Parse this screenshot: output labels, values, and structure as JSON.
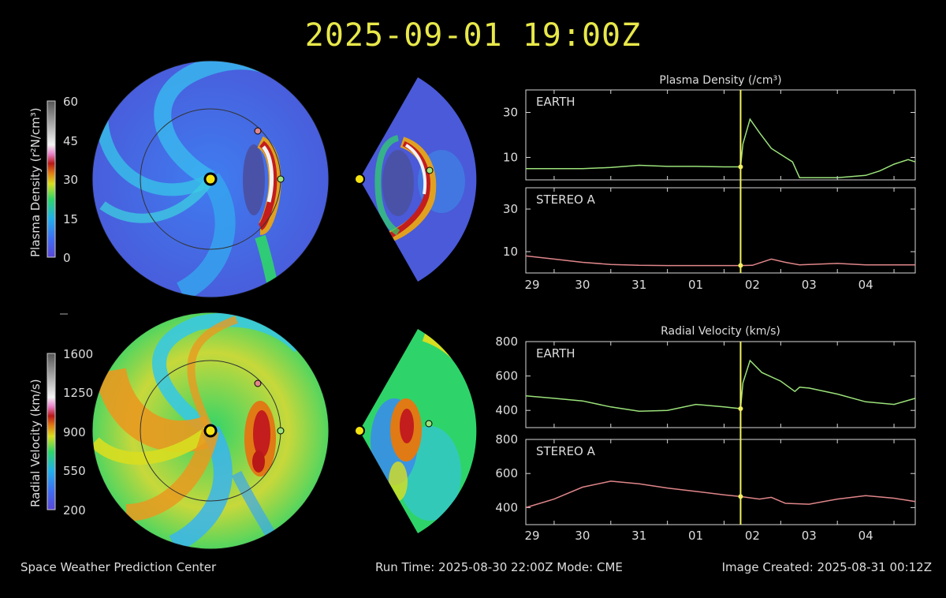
{
  "title": "2025-09-01 19:00Z",
  "footer": {
    "left": "Space Weather Prediction Center",
    "center": "Run Time: 2025-08-30 22:00Z  Mode: CME",
    "right": "Image Created: 2025-08-31 00:12Z"
  },
  "colorbars": {
    "density": {
      "label": "Plasma Density (r²N/cm³)",
      "ticks": [
        "60",
        "45",
        "30",
        "15",
        "0"
      ]
    },
    "velocity": {
      "label": "Radial Velocity (km/s)",
      "ticks": [
        "1600",
        "1250",
        "900",
        "550",
        "200"
      ]
    }
  },
  "colors": {
    "title": "#e8e84a",
    "earth_series": "#9be27a",
    "stereo_series": "#e0868a",
    "marker_line": "#f0f060",
    "axis": "#d8d8d8"
  },
  "chart_data": [
    {
      "type": "line",
      "title": "Plasma Density (/cm³)",
      "xlabel": "",
      "ylabel": "",
      "x_ticks": [
        "29",
        "30",
        "31",
        "01",
        "02",
        "03",
        "04"
      ],
      "xlim": [
        "2025-08-29 00:00",
        "2025-09-04 21:00"
      ],
      "current_time": "2025-09-01 19:00",
      "panels": [
        {
          "name": "EARTH",
          "ylim": [
            0,
            40
          ],
          "y_ticks": [
            "30",
            "10"
          ],
          "series": [
            {
              "name": "EARTH",
              "x": [
                "2025-08-29 00:00",
                "2025-08-29 12:00",
                "2025-08-30 00:00",
                "2025-08-30 12:00",
                "2025-08-31 00:00",
                "2025-08-31 12:00",
                "2025-09-01 00:00",
                "2025-09-01 12:00",
                "2025-09-01 19:00",
                "2025-09-01 20:00",
                "2025-09-01 23:00",
                "2025-09-02 03:00",
                "2025-09-02 08:00",
                "2025-09-02 14:00",
                "2025-09-02 17:00",
                "2025-09-02 20:00",
                "2025-09-03 00:00",
                "2025-09-03 12:00",
                "2025-09-04 00:00",
                "2025-09-04 06:00",
                "2025-09-04 12:00",
                "2025-09-04 18:00",
                "2025-09-04 21:00"
              ],
              "y": [
                5,
                5,
                5,
                5.5,
                6.5,
                6,
                6,
                5.8,
                5.8,
                16,
                27,
                21,
                14,
                10,
                8,
                1,
                1,
                1,
                2,
                4,
                7,
                9,
                8
              ]
            }
          ]
        },
        {
          "name": "STEREO A",
          "ylim": [
            0,
            40
          ],
          "y_ticks": [
            "30",
            "10"
          ],
          "series": [
            {
              "name": "STEREO A",
              "x": [
                "2025-08-29 00:00",
                "2025-08-29 12:00",
                "2025-08-30 00:00",
                "2025-08-30 12:00",
                "2025-08-31 00:00",
                "2025-08-31 12:00",
                "2025-09-01 00:00",
                "2025-09-01 19:00",
                "2025-09-02 00:00",
                "2025-09-02 08:00",
                "2025-09-02 14:00",
                "2025-09-02 20:00",
                "2025-09-03 00:00",
                "2025-09-03 12:00",
                "2025-09-04 00:00",
                "2025-09-04 21:00"
              ],
              "y": [
                8,
                6.5,
                5,
                4,
                3.6,
                3.5,
                3.5,
                3.5,
                3.6,
                6.5,
                5,
                3.8,
                4,
                4.5,
                3.8,
                3.8
              ]
            }
          ]
        }
      ]
    },
    {
      "type": "line",
      "title": "Radial Velocity (km/s)",
      "xlabel": "",
      "ylabel": "",
      "x_ticks": [
        "29",
        "30",
        "31",
        "01",
        "02",
        "03",
        "04"
      ],
      "xlim": [
        "2025-08-29 00:00",
        "2025-09-04 21:00"
      ],
      "current_time": "2025-09-01 19:00",
      "panels": [
        {
          "name": "EARTH",
          "ylim": [
            300,
            800
          ],
          "y_ticks": [
            "800",
            "600",
            "400"
          ],
          "series": [
            {
              "name": "EARTH",
              "x": [
                "2025-08-29 00:00",
                "2025-08-29 12:00",
                "2025-08-30 00:00",
                "2025-08-30 12:00",
                "2025-08-31 00:00",
                "2025-08-31 12:00",
                "2025-09-01 00:00",
                "2025-09-01 12:00",
                "2025-09-01 19:00",
                "2025-09-01 20:00",
                "2025-09-01 23:00",
                "2025-09-02 04:00",
                "2025-09-02 12:00",
                "2025-09-02 18:00",
                "2025-09-02 20:00",
                "2025-09-03 00:00",
                "2025-09-03 12:00",
                "2025-09-04 00:00",
                "2025-09-04 12:00",
                "2025-09-04 21:00"
              ],
              "y": [
                485,
                470,
                455,
                420,
                395,
                400,
                435,
                420,
                410,
                560,
                690,
                620,
                570,
                510,
                535,
                530,
                495,
                450,
                435,
                470
              ]
            }
          ]
        },
        {
          "name": "STEREO A",
          "ylim": [
            300,
            800
          ],
          "y_ticks": [
            "800",
            "600",
            "400"
          ],
          "series": [
            {
              "name": "STEREO A",
              "x": [
                "2025-08-29 00:00",
                "2025-08-29 12:00",
                "2025-08-30 00:00",
                "2025-08-30 12:00",
                "2025-08-31 00:00",
                "2025-08-31 12:00",
                "2025-09-01 00:00",
                "2025-09-01 12:00",
                "2025-09-01 19:00",
                "2025-09-02 03:00",
                "2025-09-02 08:00",
                "2025-09-02 14:00",
                "2025-09-03 00:00",
                "2025-09-03 12:00",
                "2025-09-04 00:00",
                "2025-09-04 12:00",
                "2025-09-04 21:00"
              ],
              "y": [
                400,
                450,
                520,
                555,
                540,
                515,
                495,
                475,
                465,
                450,
                460,
                425,
                420,
                450,
                470,
                455,
                435
              ]
            }
          ]
        }
      ]
    }
  ]
}
